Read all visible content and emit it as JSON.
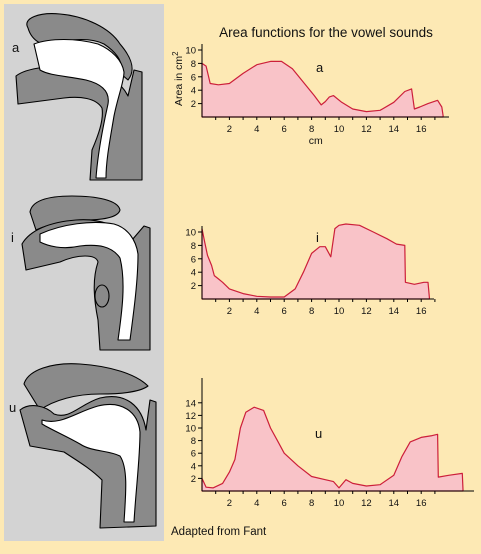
{
  "title": "Area functions for the vowel sounds",
  "credit": "Adapted from Fant",
  "colors": {
    "background": "#fde9b4",
    "panel": "#d3d3d3",
    "tract_fill": "#8a8a8a",
    "curve_fill": "#f9c3c8",
    "curve_stroke": "#cc1f3a"
  },
  "chart_data": [
    {
      "type": "area",
      "vowel": "a",
      "ylabel": "Area in cm",
      "ylabel_sup": "2",
      "xlabel": "cm",
      "xlim": [
        0,
        18
      ],
      "ylim": [
        0,
        11
      ],
      "yticks": [
        2,
        4,
        6,
        8,
        10
      ],
      "xticks": [
        2,
        4,
        6,
        8,
        10,
        12,
        14,
        16
      ],
      "x": [
        0,
        0.3,
        0.6,
        1.2,
        2,
        3,
        4,
        5,
        5.8,
        6.6,
        7.4,
        8.2,
        8.7,
        9,
        9.3,
        9.6,
        10.2,
        11,
        12,
        13,
        14,
        14.8,
        15.3,
        15.5,
        15.9,
        16.5,
        17.2,
        17.5,
        17.6
      ],
      "y": [
        8,
        7.6,
        5,
        4.8,
        5,
        6.5,
        7.8,
        8.3,
        8.3,
        7.2,
        5.2,
        3.2,
        1.8,
        2.3,
        3,
        3.2,
        2.2,
        1.2,
        0.8,
        1,
        2.2,
        3.8,
        4.2,
        1.2,
        1.5,
        2,
        2.5,
        1.5,
        0.2
      ]
    },
    {
      "type": "area",
      "vowel": "i",
      "xlim": [
        0,
        18
      ],
      "ylim": [
        0,
        11
      ],
      "yticks": [
        2,
        4,
        6,
        8,
        10
      ],
      "xticks": [
        2,
        4,
        6,
        8,
        10,
        12,
        14,
        16
      ],
      "x": [
        0,
        0.2,
        0.4,
        0.7,
        0.9,
        1.2,
        1.5,
        2,
        3,
        4,
        5,
        6,
        6.8,
        7.4,
        8,
        8.6,
        9,
        9.4,
        9.7,
        10,
        10.5,
        11.5,
        12.5,
        13.5,
        14.2,
        14.8,
        14.85,
        15.5,
        16.2,
        16.5,
        16.6
      ],
      "y": [
        10.5,
        8.5,
        6.5,
        5,
        3.5,
        3,
        2.5,
        1.5,
        0.8,
        0.4,
        0.3,
        0.3,
        1.5,
        4,
        6.8,
        7.8,
        7.8,
        6.3,
        10.5,
        11,
        11.2,
        11,
        10,
        9,
        8.2,
        8,
        2.5,
        2.2,
        2.5,
        2.5,
        0.2
      ]
    },
    {
      "type": "area",
      "vowel": "u",
      "xlim": [
        0,
        19
      ],
      "ylim": [
        0,
        16
      ],
      "yticks": [
        2,
        4,
        6,
        8,
        10,
        12,
        14
      ],
      "xticks": [
        2,
        4,
        6,
        8,
        10,
        12,
        14,
        16
      ],
      "x": [
        0,
        0.3,
        0.8,
        1.5,
        2,
        2.4,
        2.8,
        3.2,
        3.8,
        4.5,
        5,
        5.5,
        6,
        7,
        8,
        9,
        9.6,
        10,
        10.5,
        11,
        12,
        13,
        14,
        14.6,
        15.2,
        16,
        16.8,
        17.2,
        17.25,
        18,
        19,
        19.05
      ],
      "y": [
        2,
        0.6,
        0.5,
        1.2,
        3,
        5,
        10,
        12.5,
        13.3,
        12.8,
        10,
        8,
        6,
        4,
        2.3,
        1.8,
        1.5,
        0.5,
        1.8,
        1.2,
        0.8,
        1,
        2.5,
        5.5,
        7.8,
        8.5,
        8.8,
        9,
        2.2,
        2.5,
        2.8,
        0.2
      ]
    }
  ]
}
